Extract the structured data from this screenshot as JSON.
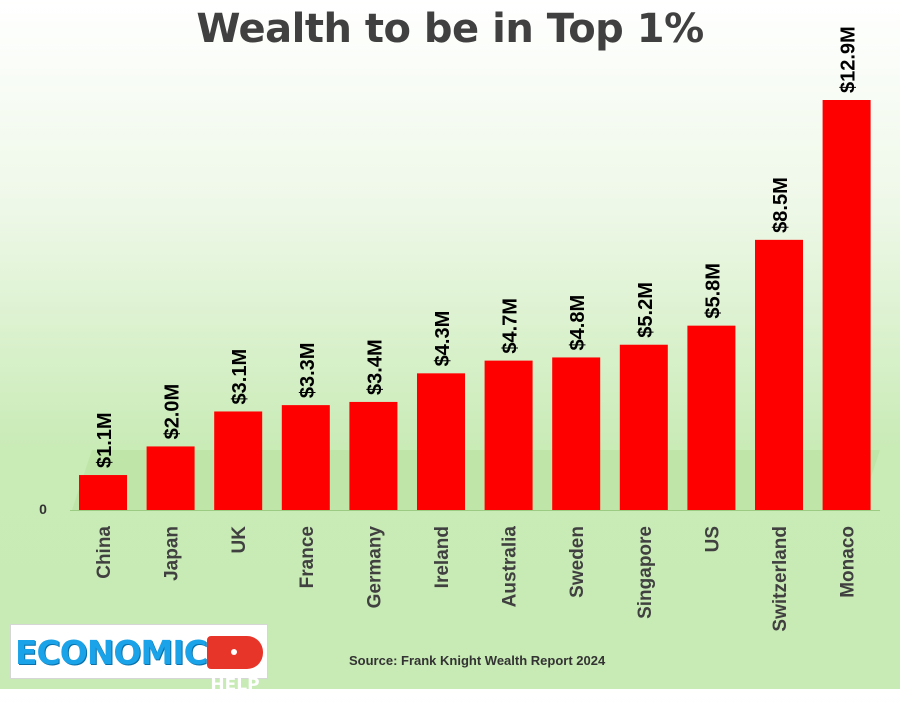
{
  "chart_data": {
    "type": "bar",
    "title": "Wealth to be in Top 1%",
    "categories": [
      "China",
      "Japan",
      "UK",
      "France",
      "Germany",
      "Ireland",
      "Australia",
      "Sweden",
      "Singapore",
      "US",
      "Switzerland",
      "Monaco"
    ],
    "values": [
      1.1,
      2.0,
      3.1,
      3.3,
      3.4,
      4.3,
      4.7,
      4.8,
      5.2,
      5.8,
      8.5,
      12.9
    ],
    "data_labels": [
      "$1.1M",
      "$2.0M",
      "$3.1M",
      "$3.3M",
      "$3.4M",
      "$4.3M",
      "$4.7M",
      "$4.8M",
      "$5.2M",
      "$5.8M",
      "$8.5M",
      "$12.9M"
    ],
    "y_tick_labels": [
      "0"
    ],
    "ylim": [
      0,
      12.9
    ],
    "xlabel": "",
    "ylabel": "",
    "grid": false,
    "legend": "none",
    "bar_color": "#ff0000"
  },
  "source": "Source:  Frank Knight Wealth Report 2024",
  "logo": {
    "text": "ECONOMICS",
    "tag": "HELP"
  }
}
